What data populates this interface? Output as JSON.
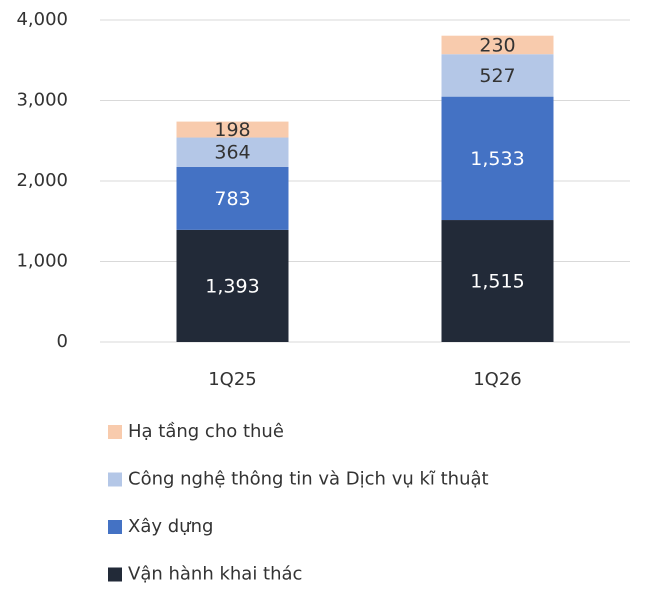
{
  "chart_data": {
    "type": "stacked_bar",
    "categories": [
      "1Q25",
      "1Q26"
    ],
    "series": [
      {
        "name": "Vận hành khai thác",
        "color": "#222a38",
        "values": [
          1393,
          1515
        ],
        "value_labels": [
          "1,393",
          "1,515"
        ]
      },
      {
        "name": "Xây dựng",
        "color": "#4472c4",
        "values": [
          783,
          1533
        ],
        "value_labels": [
          "783",
          "1,533"
        ]
      },
      {
        "name": "Công nghệ thông tin và Dịch vụ kĩ thuật",
        "color": "#b4c7e7",
        "values": [
          364,
          527
        ],
        "value_labels": [
          "364",
          "527"
        ]
      },
      {
        "name": "Hạ tầng cho thuê",
        "color": "#f8cbad",
        "values": [
          198,
          230
        ],
        "value_labels": [
          "198",
          "230"
        ]
      }
    ],
    "ylim": [
      0,
      4000
    ],
    "yticks": [
      0,
      {
        "value": 1000,
        "label": "1,000"
      },
      {
        "value": 2000,
        "label": "2,000"
      },
      {
        "value": 3000,
        "label": "3,000"
      },
      {
        "value": 4000,
        "label": "4,000"
      }
    ],
    "grid": true,
    "legend": "bottom"
  }
}
